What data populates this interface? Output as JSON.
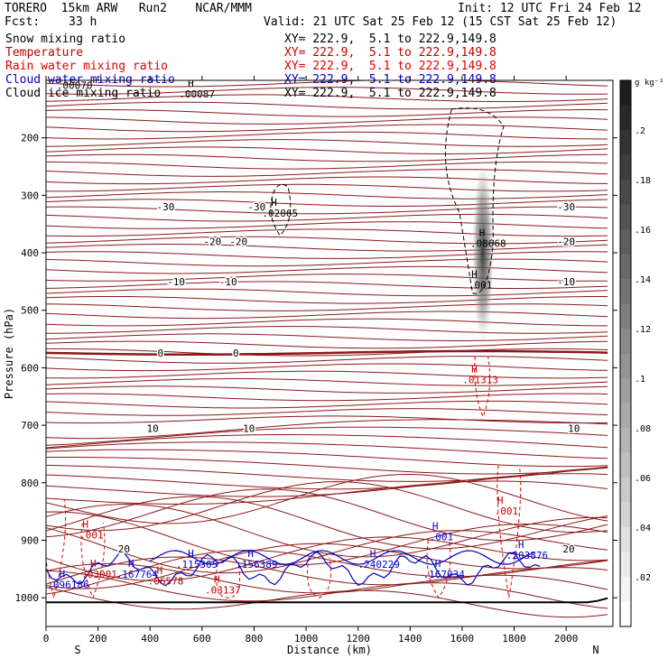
{
  "header": {
    "model": "TORERO  15km ARW   Run2    NCAR/MMM",
    "init": "Init: 12 UTC Fri 24 Feb 12",
    "fcst_label": "Fcst:",
    "fcst_value": "33 h",
    "valid": "Valid: 21 UTC Sat 25 Feb 12 (15 CST Sat 25 Feb 12)"
  },
  "fields": [
    {
      "name": "Snow mixing ratio",
      "xy": "XY= 222.9,  5.1 to 222.9,149.8",
      "color": "#000000"
    },
    {
      "name": "Temperature",
      "xy": "XY= 222.9,  5.1 to 222.9,149.8",
      "color": "#c00000"
    },
    {
      "name": "Rain water mixing ratio",
      "xy": "XY= 222.9,  5.1 to 222.9,149.8",
      "color": "#e00000"
    },
    {
      "name": "Cloud water mixing ratio",
      "xy": "XY= 222.9,  5.1 to 222.9,149.8",
      "color": "#0000cc"
    },
    {
      "name": "Cloud ice mixing ratio",
      "xy": "XY= 222.9,  5.1 to 222.9,149.8",
      "color": "#000000"
    }
  ],
  "chart_data": {
    "type": "cross-section",
    "xlabel": "Distance (km)",
    "ylabel": "Pressure (hPa)",
    "xlim": [
      0,
      2180
    ],
    "ylim": [
      1050,
      100
    ],
    "xticks": [
      0,
      200,
      400,
      600,
      800,
      1000,
      1200,
      1400,
      1600,
      1800,
      2000
    ],
    "yticks": [
      200,
      300,
      400,
      500,
      600,
      700,
      800,
      900,
      1000
    ],
    "x_end_labels": {
      "left": "S",
      "right": "N"
    },
    "colorbar": {
      "unit": "g kg⁻¹",
      "ticks": [
        ".02",
        ".04",
        ".06",
        ".08",
        ".1",
        ".12",
        ".14",
        ".16",
        ".18",
        ".2"
      ],
      "tick_values": [
        0.02,
        0.04,
        0.06,
        0.08,
        0.1,
        0.12,
        0.14,
        0.16,
        0.18,
        0.2
      ],
      "range": [
        0,
        0.22
      ]
    },
    "temperature_contours": [
      {
        "label": "-30",
        "p": 320,
        "labels_x": [
          460,
          810,
          2000
        ]
      },
      {
        "label": "-20",
        "p": 380,
        "labels_x": [
          640,
          740,
          2000
        ]
      },
      {
        "label": "-10",
        "p": 450,
        "labels_x": [
          500,
          700,
          2000
        ]
      },
      {
        "label": "0",
        "p": 574,
        "labels_x": [
          440,
          730
        ]
      },
      {
        "label": "10",
        "p": 705,
        "labels_x": [
          410,
          780,
          2030
        ]
      },
      {
        "label": "20",
        "p": 915,
        "labels_x": [
          300,
          2010
        ]
      }
    ],
    "temperature_color": "#8b1a1a",
    "max_labels": [
      {
        "text": ".00070",
        "x": 110,
        "p": 115,
        "color": "#000000"
      },
      {
        "text": ".00087",
        "x": 580,
        "p": 130,
        "color": "#000000"
      },
      {
        "text": ".02065",
        "x": 900,
        "p": 337,
        "color": "#000000"
      },
      {
        "text": ".08668",
        "x": 1700,
        "p": 390,
        "color": "#000000"
      },
      {
        "text": ".001",
        "x": 1670,
        "p": 462,
        "color": "#000000"
      },
      {
        "text": ".01313",
        "x": 1670,
        "p": 627,
        "color": "#c00000"
      },
      {
        "text": ".001",
        "x": 1770,
        "p": 855,
        "color": "#c00000"
      },
      {
        "text": ".001",
        "x": 175,
        "p": 897,
        "color": "#c00000"
      },
      {
        "text": ".03001",
        "x": 205,
        "p": 965,
        "color": "#c00000"
      },
      {
        "text": ".06578",
        "x": 460,
        "p": 977,
        "color": "#c00000"
      },
      {
        "text": ".03137",
        "x": 680,
        "p": 993,
        "color": "#c00000"
      },
      {
        "text": ".001",
        "x": 1520,
        "p": 900,
        "color": "#0000cc"
      },
      {
        "text": ".096186",
        "x": 85,
        "p": 983,
        "color": "#0000cc"
      },
      {
        "text": ".167764",
        "x": 350,
        "p": 965,
        "color": "#0000cc"
      },
      {
        "text": ".115305",
        "x": 580,
        "p": 948,
        "color": "#0000cc"
      },
      {
        "text": ".156389",
        "x": 810,
        "p": 948,
        "color": "#0000cc"
      },
      {
        "text": ".240229",
        "x": 1280,
        "p": 948,
        "color": "#0000cc"
      },
      {
        "text": ".167034",
        "x": 1530,
        "p": 965,
        "color": "#0000cc"
      },
      {
        "text": ".203876",
        "x": 1850,
        "p": 932,
        "color": "#0000cc"
      }
    ],
    "snow_max": 0.0867,
    "rain_max": 0.01313
  }
}
